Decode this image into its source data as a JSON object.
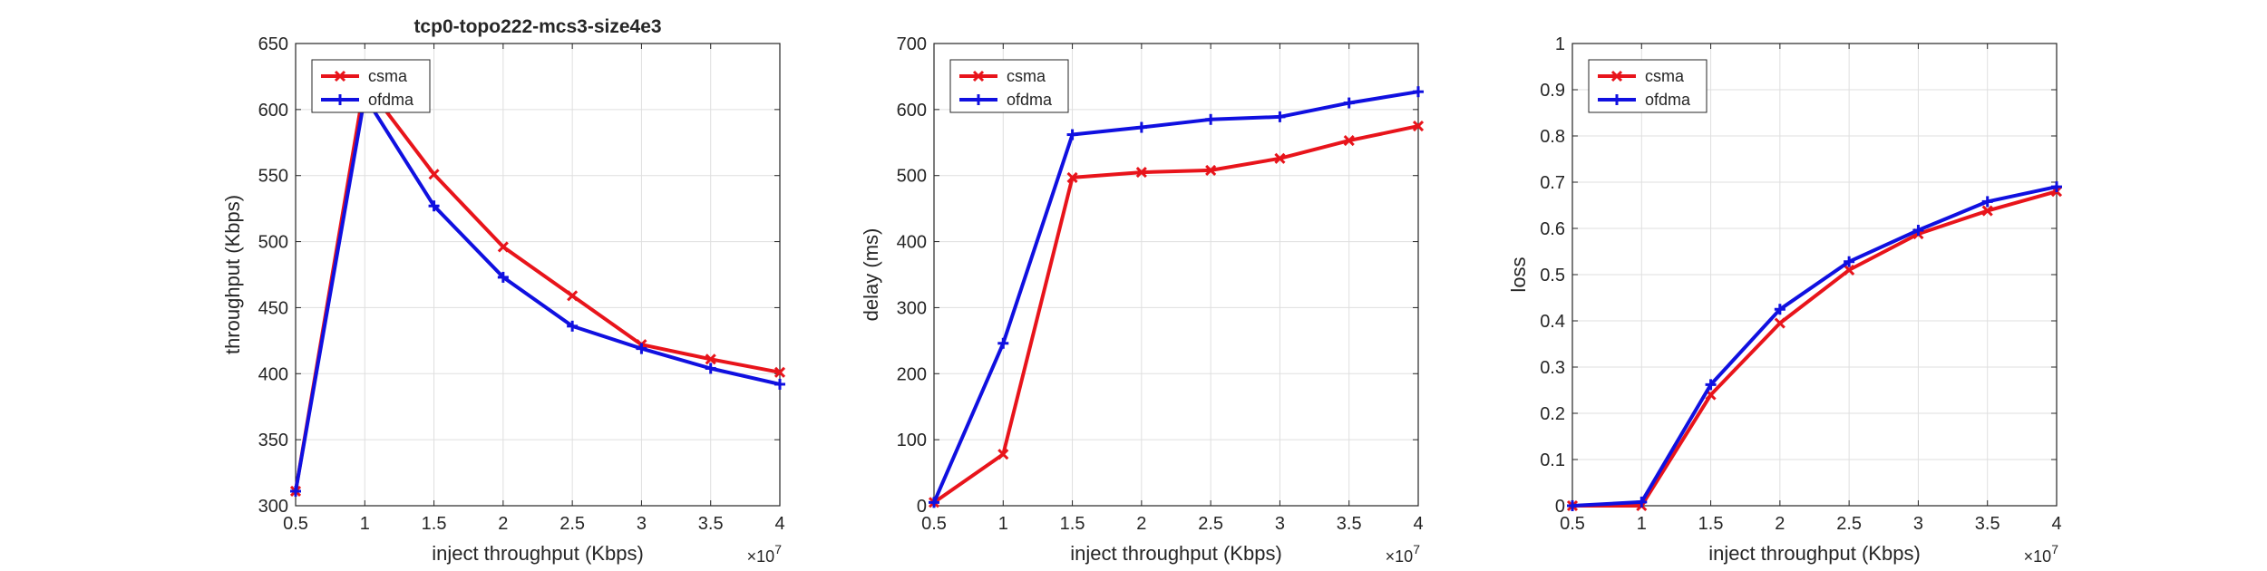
{
  "colors": {
    "csma": "#e8141b",
    "ofdma": "#1010e0",
    "axis": "#262626",
    "grid": "#dfdfdf"
  },
  "chart_data": [
    {
      "type": "line",
      "title": "tcp0-topo222-mcs3-size4e3",
      "xlabel": "inject throughput (Kbps)",
      "ylabel": "throughput (Kbps)",
      "x_exponent_base": "×10",
      "x_exponent_power": "7",
      "xlim": [
        0.5,
        4
      ],
      "ylim": [
        300,
        650
      ],
      "xticks": [
        0.5,
        1,
        1.5,
        2,
        2.5,
        3,
        3.5,
        4
      ],
      "xtick_labels": [
        "0.5",
        "1",
        "1.5",
        "2",
        "2.5",
        "3",
        "3.5",
        "4"
      ],
      "yticks": [
        300,
        350,
        400,
        450,
        500,
        550,
        600,
        650
      ],
      "ytick_labels": [
        "300",
        "350",
        "400",
        "450",
        "500",
        "550",
        "600",
        "650"
      ],
      "grid": true,
      "legend_position": "top-left",
      "x": [
        0.5,
        1,
        1.5,
        2,
        2.5,
        3,
        3.5,
        4
      ],
      "series": [
        {
          "name": "csma",
          "marker": "x",
          "values": [
            311,
            620,
            551,
            496,
            459,
            422,
            411,
            401
          ]
        },
        {
          "name": "ofdma",
          "marker": "+",
          "values": [
            311,
            610,
            527,
            473,
            436,
            419,
            404,
            392
          ]
        }
      ]
    },
    {
      "type": "line",
      "title": "",
      "xlabel": "inject throughput (Kbps)",
      "ylabel": "delay (ms)",
      "x_exponent_base": "×10",
      "x_exponent_power": "7",
      "xlim": [
        0.5,
        4
      ],
      "ylim": [
        0,
        700
      ],
      "xticks": [
        0.5,
        1,
        1.5,
        2,
        2.5,
        3,
        3.5,
        4
      ],
      "xtick_labels": [
        "0.5",
        "1",
        "1.5",
        "2",
        "2.5",
        "3",
        "3.5",
        "4"
      ],
      "yticks": [
        0,
        100,
        200,
        300,
        400,
        500,
        600,
        700
      ],
      "ytick_labels": [
        "0",
        "100",
        "200",
        "300",
        "400",
        "500",
        "600",
        "700"
      ],
      "grid": true,
      "legend_position": "top-left",
      "x": [
        0.5,
        1,
        1.5,
        2,
        2.5,
        3,
        3.5,
        4
      ],
      "series": [
        {
          "name": "csma",
          "marker": "x",
          "values": [
            5,
            78,
            497,
            505,
            508,
            526,
            553,
            575
          ]
        },
        {
          "name": "ofdma",
          "marker": "+",
          "values": [
            5,
            246,
            562,
            573,
            585,
            589,
            610,
            627
          ]
        }
      ]
    },
    {
      "type": "line",
      "title": "",
      "xlabel": "inject throughput (Kbps)",
      "ylabel": "loss",
      "x_exponent_base": "×10",
      "x_exponent_power": "7",
      "xlim": [
        0.5,
        4
      ],
      "ylim": [
        0,
        1
      ],
      "xticks": [
        0.5,
        1,
        1.5,
        2,
        2.5,
        3,
        3.5,
        4
      ],
      "xtick_labels": [
        "0.5",
        "1",
        "1.5",
        "2",
        "2.5",
        "3",
        "3.5",
        "4"
      ],
      "yticks": [
        0,
        0.1,
        0.2,
        0.3,
        0.4,
        0.5,
        0.6,
        0.7,
        0.8,
        0.9,
        1
      ],
      "ytick_labels": [
        "0",
        "0.1",
        "0.2",
        "0.3",
        "0.4",
        "0.5",
        "0.6",
        "0.7",
        "0.8",
        "0.9",
        "1"
      ],
      "grid": true,
      "legend_position": "top-left",
      "x": [
        0.5,
        1,
        1.5,
        2,
        2.5,
        3,
        3.5,
        4
      ],
      "series": [
        {
          "name": "csma",
          "marker": "x",
          "values": [
            0,
            0,
            0.24,
            0.395,
            0.51,
            0.588,
            0.638,
            0.68
          ]
        },
        {
          "name": "ofdma",
          "marker": "+",
          "values": [
            0,
            0.008,
            0.262,
            0.425,
            0.528,
            0.596,
            0.658,
            0.69
          ]
        }
      ]
    }
  ]
}
